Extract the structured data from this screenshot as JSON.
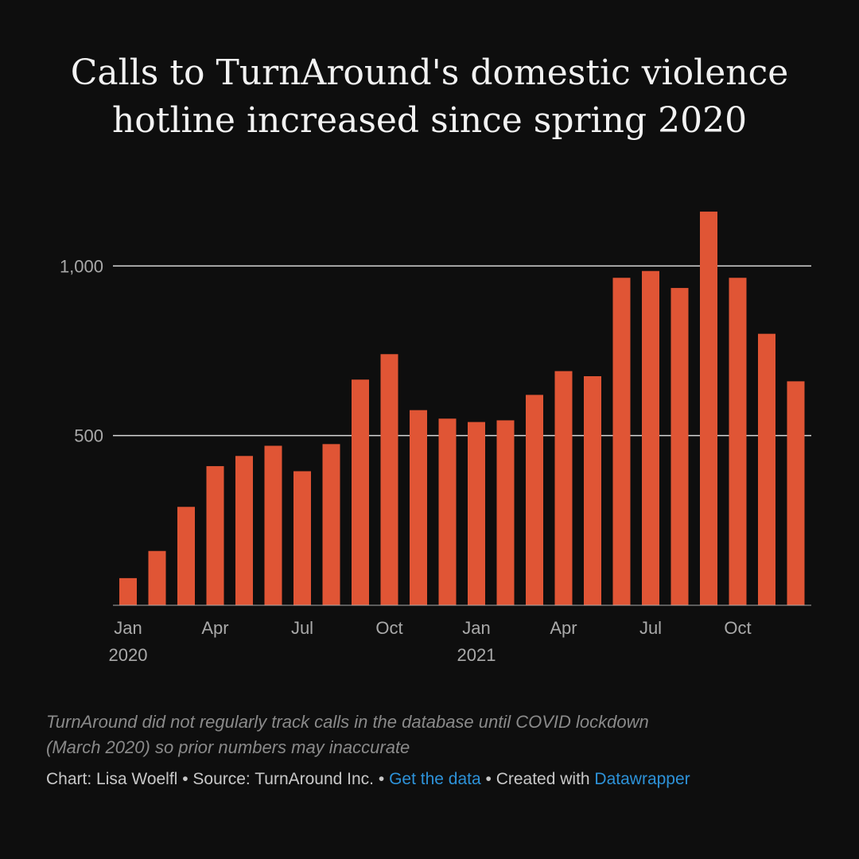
{
  "title_line1": "Calls to TurnAround's domestic violence",
  "title_line2": "hotline increased since spring 2020",
  "note_line1": "TurnAround did not regularly track calls in the database until COVID lockdown",
  "note_line2": "(March 2020) so prior numbers may inaccurate",
  "footer": {
    "credit": "Chart: Lisa Woelfl",
    "sep": " • ",
    "source": "Source: TurnAround Inc.",
    "get_data": "Get the data",
    "created": "Created with ",
    "datawrapper": "Datawrapper"
  },
  "colors": {
    "bar": "#e05535",
    "background": "#0e0e0e",
    "grid": "#d8d8d8",
    "axis": "#aaaaaa"
  },
  "chart_data": {
    "type": "bar",
    "categories": [
      "2020-01",
      "2020-02",
      "2020-03",
      "2020-04",
      "2020-05",
      "2020-06",
      "2020-07",
      "2020-08",
      "2020-09",
      "2020-10",
      "2020-11",
      "2020-12",
      "2021-01",
      "2021-02",
      "2021-03",
      "2021-04",
      "2021-05",
      "2021-06",
      "2021-07",
      "2021-08",
      "2021-09",
      "2021-10",
      "2021-11",
      "2021-12"
    ],
    "values": [
      80,
      160,
      290,
      410,
      440,
      470,
      395,
      475,
      665,
      740,
      575,
      550,
      540,
      545,
      620,
      690,
      675,
      965,
      985,
      935,
      1160,
      965,
      800,
      660
    ],
    "x_tick_labels": [
      {
        "index": 0,
        "month": "Jan",
        "year": "2020"
      },
      {
        "index": 3,
        "month": "Apr",
        "year": ""
      },
      {
        "index": 6,
        "month": "Jul",
        "year": ""
      },
      {
        "index": 9,
        "month": "Oct",
        "year": ""
      },
      {
        "index": 12,
        "month": "Jan",
        "year": "2021"
      },
      {
        "index": 15,
        "month": "Apr",
        "year": ""
      },
      {
        "index": 18,
        "month": "Jul",
        "year": ""
      },
      {
        "index": 21,
        "month": "Oct",
        "year": ""
      }
    ],
    "y_ticks": [
      {
        "value": 500,
        "label": "500"
      },
      {
        "value": 1000,
        "label": "1,000"
      }
    ],
    "ylim": [
      0,
      1200
    ],
    "grid": true,
    "xlabel": "",
    "ylabel": ""
  }
}
